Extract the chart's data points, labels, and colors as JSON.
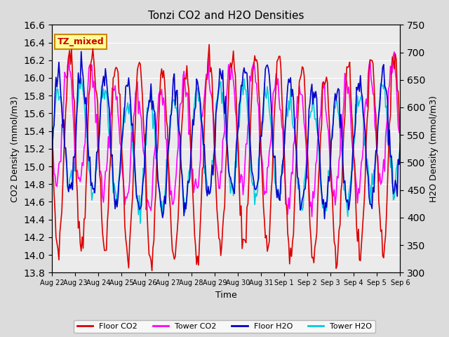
{
  "title": "Tonzi CO2 and H2O Densities",
  "xlabel": "Time",
  "ylabel_left": "CO2 Density (mmol/m3)",
  "ylabel_right": "H2O Density (mmol/m3)",
  "annotation": "TZ_mixed",
  "annotation_color": "#cc0000",
  "annotation_bg": "#ffff99",
  "annotation_border": "#cc8800",
  "x_tick_labels": [
    "Aug 22",
    "Aug 23",
    "Aug 24",
    "Aug 25",
    "Aug 26",
    "Aug 27",
    "Aug 28",
    "Aug 29",
    "Aug 30",
    "Aug 31",
    "Sep 1",
    "Sep 2",
    "Sep 3",
    "Sep 4",
    "Sep 5",
    "Sep 6"
  ],
  "ylim_left": [
    13.8,
    16.6
  ],
  "ylim_right": [
    300,
    750
  ],
  "yticks_left": [
    13.8,
    14.0,
    14.2,
    14.4,
    14.6,
    14.8,
    15.0,
    15.2,
    15.4,
    15.6,
    15.8,
    16.0,
    16.2,
    16.4,
    16.6
  ],
  "yticks_right": [
    300,
    350,
    400,
    450,
    500,
    550,
    600,
    650,
    700,
    750
  ],
  "colors": {
    "floor_co2": "#dd0000",
    "tower_co2": "#ff00ff",
    "floor_h2o": "#0000cc",
    "tower_h2o": "#00ccdd"
  },
  "linewidth": 1.2,
  "background_color": "#dcdcdc",
  "plot_bg_color": "#ebebeb",
  "grid_color": "#ffffff",
  "n_points": 360,
  "days": 15
}
